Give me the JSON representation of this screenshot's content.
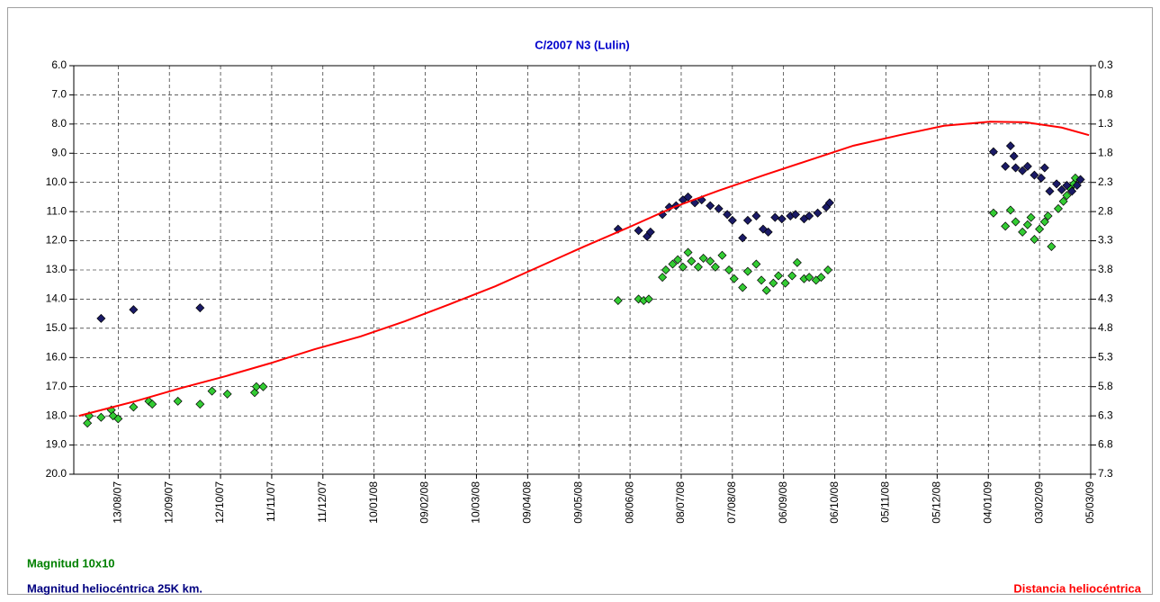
{
  "chart_data": {
    "type": "scatter",
    "title": "C/2007 N3 (Lulin)",
    "xlim": [
      "2007-07-18",
      "2009-03-05"
    ],
    "xticks": [
      {
        "value": "2007-08-13",
        "label": "13/08/07"
      },
      {
        "value": "2007-09-12",
        "label": "12/09/07"
      },
      {
        "value": "2007-10-12",
        "label": "12/10/07"
      },
      {
        "value": "2007-11-11",
        "label": "11/11/07"
      },
      {
        "value": "2007-12-11",
        "label": "11/12/07"
      },
      {
        "value": "2008-01-10",
        "label": "10/01/08"
      },
      {
        "value": "2008-02-09",
        "label": "09/02/08"
      },
      {
        "value": "2008-03-10",
        "label": "10/03/08"
      },
      {
        "value": "2008-04-09",
        "label": "09/04/08"
      },
      {
        "value": "2008-05-09",
        "label": "09/05/08"
      },
      {
        "value": "2008-06-08",
        "label": "08/06/08"
      },
      {
        "value": "2008-07-08",
        "label": "08/07/08"
      },
      {
        "value": "2008-08-07",
        "label": "07/08/08"
      },
      {
        "value": "2008-09-06",
        "label": "06/09/08"
      },
      {
        "value": "2008-10-06",
        "label": "06/10/08"
      },
      {
        "value": "2008-11-05",
        "label": "05/11/08"
      },
      {
        "value": "2008-12-05",
        "label": "05/12/08"
      },
      {
        "value": "2009-01-04",
        "label": "04/01/09"
      },
      {
        "value": "2009-02-03",
        "label": "03/02/09"
      },
      {
        "value": "2009-03-05",
        "label": "05/03/09"
      }
    ],
    "ylim": [
      20,
      6
    ],
    "yticks": [
      {
        "value": 6,
        "label": "6.0"
      },
      {
        "value": 7,
        "label": "7.0"
      },
      {
        "value": 8,
        "label": "8.0"
      },
      {
        "value": 9,
        "label": "9.0"
      },
      {
        "value": 10,
        "label": "10.0"
      },
      {
        "value": 11,
        "label": "11.0"
      },
      {
        "value": 12,
        "label": "12.0"
      },
      {
        "value": 13,
        "label": "13.0"
      },
      {
        "value": 14,
        "label": "14.0"
      },
      {
        "value": 15,
        "label": "15.0"
      },
      {
        "value": 16,
        "label": "16.0"
      },
      {
        "value": 17,
        "label": "17.0"
      },
      {
        "value": 18,
        "label": "18.0"
      },
      {
        "value": 19,
        "label": "19.0"
      },
      {
        "value": 20,
        "label": "20.0"
      }
    ],
    "y2lim": [
      7.3,
      0.3
    ],
    "y2ticks": [
      0.3,
      0.8,
      1.3,
      1.8,
      2.3,
      2.8,
      3.3,
      3.8,
      4.3,
      4.8,
      5.3,
      5.8,
      6.3,
      6.8,
      7.3
    ],
    "grid": true,
    "series": [
      {
        "name": "Magnitud 10x10",
        "color": "#33cc33",
        "kind": "scatter",
        "legend_color": "#008000",
        "x": [
          "2007-07-26",
          "2007-07-27",
          "2007-08-03",
          "2007-08-09",
          "2007-08-10",
          "2007-08-13",
          "2007-08-22",
          "2007-08-31",
          "2007-09-02",
          "2007-09-17",
          "2007-09-30",
          "2007-10-07",
          "2007-10-16",
          "2007-11-01",
          "2007-11-02",
          "2007-11-06",
          "2008-06-01",
          "2008-06-13",
          "2008-06-16",
          "2008-06-19",
          "2008-06-27",
          "2008-06-29",
          "2008-07-03",
          "2008-07-06",
          "2008-07-09",
          "2008-07-12",
          "2008-07-14",
          "2008-07-18",
          "2008-07-21",
          "2008-07-25",
          "2008-07-28",
          "2008-08-01",
          "2008-08-05",
          "2008-08-08",
          "2008-08-13",
          "2008-08-16",
          "2008-08-21",
          "2008-08-24",
          "2008-08-27",
          "2008-08-31",
          "2008-09-03",
          "2008-09-07",
          "2008-09-11",
          "2008-09-14",
          "2008-09-18",
          "2008-09-21",
          "2008-09-25",
          "2008-09-28",
          "2008-10-02",
          "2009-01-07",
          "2009-01-14",
          "2009-01-17",
          "2009-01-20",
          "2009-01-24",
          "2009-01-27",
          "2009-01-29",
          "2009-01-31",
          "2009-02-03",
          "2009-02-06",
          "2009-02-08",
          "2009-02-10",
          "2009-02-14",
          "2009-02-17",
          "2009-02-19",
          "2009-02-21",
          "2009-02-23",
          "2009-02-24"
        ],
        "values": [
          18.25,
          18.0,
          18.05,
          17.8,
          18.0,
          18.1,
          17.7,
          17.5,
          17.6,
          17.5,
          17.6,
          17.15,
          17.25,
          17.2,
          17.0,
          17.0,
          14.05,
          14.0,
          14.05,
          14.0,
          13.25,
          13.0,
          12.8,
          12.65,
          12.9,
          12.4,
          12.7,
          12.9,
          12.6,
          12.7,
          12.9,
          12.5,
          13.0,
          13.3,
          13.6,
          13.05,
          12.8,
          13.35,
          13.7,
          13.45,
          13.2,
          13.45,
          13.2,
          12.75,
          13.3,
          13.25,
          13.35,
          13.25,
          13.0,
          11.05,
          11.5,
          10.95,
          11.35,
          11.7,
          11.45,
          11.2,
          11.95,
          11.6,
          11.35,
          11.15,
          12.2,
          10.9,
          10.65,
          10.45,
          10.2,
          10.05,
          9.85
        ]
      },
      {
        "name": "Magnitud heliocéntrica 25K km.",
        "color": "#1a1a66",
        "kind": "scatter",
        "legend_color": "#000080",
        "x": [
          "2007-08-03",
          "2007-08-22",
          "2007-09-30",
          "2008-06-01",
          "2008-06-13",
          "2008-06-18",
          "2008-06-20",
          "2008-06-27",
          "2008-07-01",
          "2008-07-05",
          "2008-07-09",
          "2008-07-12",
          "2008-07-16",
          "2008-07-20",
          "2008-07-25",
          "2008-07-30",
          "2008-08-04",
          "2008-08-07",
          "2008-08-13",
          "2008-08-16",
          "2008-08-21",
          "2008-08-25",
          "2008-08-28",
          "2008-09-01",
          "2008-09-05",
          "2008-09-10",
          "2008-09-13",
          "2008-09-18",
          "2008-09-21",
          "2008-09-26",
          "2008-10-01",
          "2008-10-03",
          "2009-01-07",
          "2009-01-14",
          "2009-01-17",
          "2009-01-19",
          "2009-01-20",
          "2009-01-24",
          "2009-01-27",
          "2009-01-31",
          "2009-02-04",
          "2009-02-06",
          "2009-02-09",
          "2009-02-13",
          "2009-02-16",
          "2009-02-19",
          "2009-02-22",
          "2009-02-25",
          "2009-02-27"
        ],
        "values": [
          14.66,
          14.36,
          14.3,
          11.6,
          11.65,
          11.85,
          11.7,
          11.1,
          10.85,
          10.8,
          10.6,
          10.5,
          10.7,
          10.6,
          10.8,
          10.9,
          11.1,
          11.3,
          11.9,
          11.3,
          11.15,
          11.6,
          11.7,
          11.2,
          11.25,
          11.15,
          11.1,
          11.25,
          11.15,
          11.05,
          10.85,
          10.7,
          8.95,
          9.45,
          8.75,
          9.1,
          9.5,
          9.6,
          9.45,
          9.75,
          9.85,
          9.5,
          10.3,
          10.05,
          10.25,
          10.1,
          10.3,
          10.1,
          9.9
        ]
      },
      {
        "name": "Distancia heliocéntrica",
        "color": "#ff0000",
        "kind": "line",
        "axis": "y2",
        "legend_color": "#ff0000",
        "x": [
          "2007-07-21",
          "2007-08-23",
          "2007-09-18",
          "2007-10-15",
          "2007-11-10",
          "2007-12-06",
          "2008-01-02",
          "2008-01-28",
          "2008-02-23",
          "2008-03-21",
          "2008-04-16",
          "2008-05-12",
          "2008-06-08",
          "2008-07-04",
          "2008-07-30",
          "2008-08-26",
          "2008-09-21",
          "2008-10-17",
          "2008-11-13",
          "2008-12-09",
          "2009-01-05",
          "2009-01-26",
          "2009-02-16",
          "2009-03-04"
        ],
        "values": [
          6.3,
          6.05,
          5.83,
          5.62,
          5.4,
          5.16,
          4.94,
          4.68,
          4.39,
          4.08,
          3.74,
          3.4,
          3.06,
          2.72,
          2.44,
          2.17,
          1.92,
          1.67,
          1.49,
          1.33,
          1.26,
          1.27,
          1.36,
          1.49
        ]
      }
    ]
  }
}
